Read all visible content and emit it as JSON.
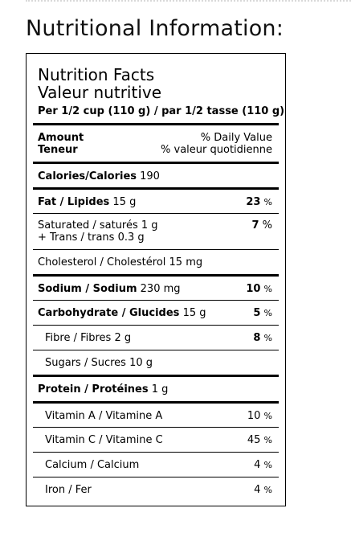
{
  "heading": "Nutritional Information:",
  "label": {
    "title_en": "Nutrition Facts",
    "title_fr": "Valeur nutritive",
    "serving": "Per 1/2 cup (110 g) / par 1/2 tasse (110 g)",
    "amount_en": "Amount",
    "amount_fr": "Teneur",
    "dv_en": "% Daily Value",
    "dv_fr": "% valeur quotidienne",
    "calories_label": "Calories/Calories",
    "calories_value": "190",
    "fat_label": "Fat / Lipides",
    "fat_amount": "15 g",
    "fat_pct": "23",
    "saturated_label": "Saturated / saturés",
    "saturated_amount": "1 g",
    "trans_line": "+ Trans / trans 0.3 g",
    "saturated_pct": "7",
    "cholesterol_line": "Cholesterol / Cholestérol 15 mg",
    "sodium_label": "Sodium / Sodium",
    "sodium_amount": "230 mg",
    "sodium_pct": "10",
    "carb_label": "Carbohydrate / Glucides",
    "carb_amount": "15 g",
    "carb_pct": "5",
    "fibre_label": "Fibre / Fibres 2 g",
    "fibre_pct": "8",
    "sugars_line": "Sugars / Sucres 10 g",
    "protein_label": "Protein / Protéines",
    "protein_amount": "1 g",
    "vita_label": "Vitamin A / Vitamine A",
    "vita_pct": "10",
    "vitc_label": "Vitamin C / Vitamine C",
    "vitc_pct": "45",
    "calcium_label": "Calcium / Calcium",
    "calcium_pct": "4",
    "iron_label": "Iron / Fer",
    "iron_pct": "4",
    "pct_sign": "%"
  }
}
